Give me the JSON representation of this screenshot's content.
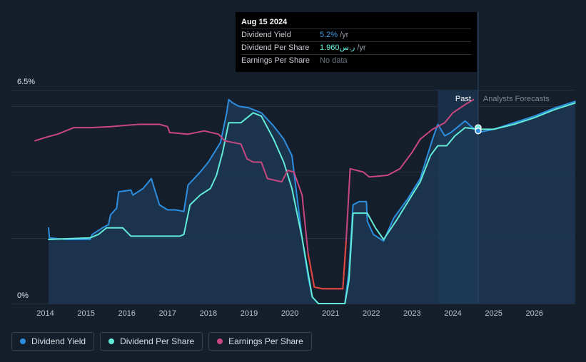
{
  "chart_data": {
    "type": "line",
    "ylim": [
      0,
      6.5
    ],
    "xlim": [
      2013.7,
      2027.0
    ],
    "y_tick_labels": [
      {
        "value": 6.5,
        "label": "6.5%"
      },
      {
        "value": 0,
        "label": "0%"
      }
    ],
    "x_ticks": [
      2014,
      2015,
      2016,
      2017,
      2018,
      2019,
      2020,
      2021,
      2022,
      2023,
      2024,
      2025,
      2026
    ],
    "past_label": "Past",
    "forecast_label": "Analysts Forecasts",
    "forecast_start": 2023.63,
    "today": 2024.62,
    "series": [
      {
        "name": "Dividend Yield",
        "color": "#2d8ee0",
        "points": [
          [
            2014.08,
            2.3
          ],
          [
            2014.1,
            2.0
          ],
          [
            2014.5,
            1.95
          ],
          [
            2015.1,
            1.95
          ],
          [
            2015.15,
            2.1
          ],
          [
            2015.4,
            2.3
          ],
          [
            2015.55,
            2.4
          ],
          [
            2015.6,
            2.7
          ],
          [
            2015.75,
            2.9
          ],
          [
            2015.8,
            3.4
          ],
          [
            2016.1,
            3.45
          ],
          [
            2016.15,
            3.3
          ],
          [
            2016.4,
            3.5
          ],
          [
            2016.6,
            3.8
          ],
          [
            2016.8,
            3.0
          ],
          [
            2017.0,
            2.85
          ],
          [
            2017.2,
            2.85
          ],
          [
            2017.4,
            2.8
          ],
          [
            2017.5,
            3.6
          ],
          [
            2017.8,
            4.0
          ],
          [
            2018.0,
            4.3
          ],
          [
            2018.3,
            4.9
          ],
          [
            2018.45,
            5.8
          ],
          [
            2018.5,
            6.2
          ],
          [
            2018.6,
            6.1
          ],
          [
            2018.75,
            6.0
          ],
          [
            2019.0,
            5.95
          ],
          [
            2019.3,
            5.8
          ],
          [
            2019.6,
            5.4
          ],
          [
            2019.85,
            5.0
          ],
          [
            2020.05,
            4.5
          ],
          [
            2020.15,
            3.5
          ],
          [
            2020.3,
            2.0
          ],
          [
            2020.45,
            0.8
          ],
          [
            2020.55,
            0.2
          ],
          [
            2020.7,
            0.0
          ],
          [
            2021.35,
            0.0
          ],
          [
            2021.45,
            1.0
          ],
          [
            2021.55,
            3.0
          ],
          [
            2021.7,
            3.1
          ],
          [
            2021.88,
            3.1
          ],
          [
            2021.9,
            2.5
          ],
          [
            2022.05,
            2.1
          ],
          [
            2022.3,
            1.9
          ],
          [
            2022.55,
            2.6
          ],
          [
            2022.9,
            3.2
          ],
          [
            2023.2,
            3.8
          ],
          [
            2023.5,
            5.0
          ],
          [
            2023.63,
            5.45
          ],
          [
            2023.8,
            5.1
          ],
          [
            2023.95,
            5.2
          ],
          [
            2024.3,
            5.55
          ],
          [
            2024.62,
            5.2
          ],
          [
            2025.0,
            5.3
          ],
          [
            2025.5,
            5.5
          ],
          [
            2026.0,
            5.7
          ],
          [
            2026.5,
            5.95
          ],
          [
            2027.0,
            6.15
          ]
        ]
      },
      {
        "name": "Dividend Per Share",
        "color": "#62ecd8",
        "points": [
          [
            2014.08,
            1.95
          ],
          [
            2015.1,
            2.0
          ],
          [
            2015.3,
            2.1
          ],
          [
            2015.5,
            2.3
          ],
          [
            2015.9,
            2.3
          ],
          [
            2016.1,
            2.05
          ],
          [
            2016.5,
            2.05
          ],
          [
            2017.3,
            2.05
          ],
          [
            2017.4,
            2.1
          ],
          [
            2017.55,
            3.0
          ],
          [
            2017.8,
            3.3
          ],
          [
            2018.05,
            3.5
          ],
          [
            2018.2,
            3.9
          ],
          [
            2018.35,
            4.6
          ],
          [
            2018.5,
            5.5
          ],
          [
            2018.8,
            5.5
          ],
          [
            2019.1,
            5.8
          ],
          [
            2019.3,
            5.7
          ],
          [
            2019.6,
            5.0
          ],
          [
            2019.85,
            4.3
          ],
          [
            2020.05,
            3.5
          ],
          [
            2020.3,
            2.0
          ],
          [
            2020.55,
            0.2
          ],
          [
            2020.7,
            0.0
          ],
          [
            2021.35,
            0.0
          ],
          [
            2021.45,
            0.7
          ],
          [
            2021.55,
            2.75
          ],
          [
            2021.9,
            2.75
          ],
          [
            2022.1,
            2.3
          ],
          [
            2022.3,
            1.95
          ],
          [
            2022.6,
            2.5
          ],
          [
            2022.9,
            3.1
          ],
          [
            2023.2,
            3.7
          ],
          [
            2023.45,
            4.5
          ],
          [
            2023.63,
            4.8
          ],
          [
            2023.85,
            4.8
          ],
          [
            2024.05,
            5.1
          ],
          [
            2024.3,
            5.35
          ],
          [
            2024.62,
            5.3
          ],
          [
            2025.0,
            5.3
          ],
          [
            2025.5,
            5.45
          ],
          [
            2026.0,
            5.65
          ],
          [
            2026.5,
            5.9
          ],
          [
            2027.0,
            6.1
          ]
        ]
      },
      {
        "name": "Earnings Per Share",
        "color": "#c8477f",
        "points": [
          [
            2013.75,
            4.95
          ],
          [
            2014.0,
            5.05
          ],
          [
            2014.3,
            5.15
          ],
          [
            2014.7,
            5.35
          ],
          [
            2015.1,
            5.35
          ],
          [
            2015.6,
            5.38
          ],
          [
            2016.0,
            5.42
          ],
          [
            2016.3,
            5.45
          ],
          [
            2016.8,
            5.45
          ],
          [
            2017.0,
            5.38
          ],
          [
            2017.05,
            5.2
          ],
          [
            2017.5,
            5.15
          ],
          [
            2017.9,
            5.25
          ],
          [
            2018.25,
            5.15
          ],
          [
            2018.4,
            4.95
          ],
          [
            2018.8,
            4.85
          ],
          [
            2018.95,
            4.4
          ],
          [
            2019.1,
            4.3
          ],
          [
            2019.3,
            4.3
          ],
          [
            2019.45,
            3.8
          ],
          [
            2019.8,
            3.7
          ],
          [
            2019.95,
            4.05
          ],
          [
            2020.1,
            4.0
          ],
          [
            2020.3,
            3.3
          ],
          [
            2020.45,
            1.5
          ],
          [
            2020.6,
            0.5
          ],
          [
            2020.8,
            0.45
          ],
          [
            2021.3,
            0.45
          ],
          [
            2021.38,
            1.9
          ],
          [
            2021.48,
            4.1
          ],
          [
            2021.8,
            4.0
          ],
          [
            2021.95,
            3.85
          ],
          [
            2022.4,
            3.9
          ],
          [
            2022.7,
            4.1
          ],
          [
            2023.0,
            4.6
          ],
          [
            2023.2,
            5.0
          ],
          [
            2023.5,
            5.3
          ],
          [
            2023.8,
            5.5
          ],
          [
            2024.0,
            5.8
          ],
          [
            2024.3,
            6.05
          ],
          [
            2024.5,
            6.2
          ]
        ]
      }
    ]
  },
  "tooltip": {
    "date": "Aug 15 2024",
    "rows": [
      {
        "label": "Dividend Yield",
        "value": "5.2%",
        "unit": "/yr"
      },
      {
        "label": "Dividend Per Share",
        "value": "1.960ر.س",
        "unit": "/yr"
      },
      {
        "label": "Earnings Per Share",
        "value": "No data",
        "unit": ""
      }
    ]
  },
  "legend": [
    {
      "label": "Dividend Yield",
      "color": "#2d8ee0"
    },
    {
      "label": "Dividend Per Share",
      "color": "#62ecd8"
    },
    {
      "label": "Earnings Per Share",
      "color": "#c8477f"
    }
  ]
}
